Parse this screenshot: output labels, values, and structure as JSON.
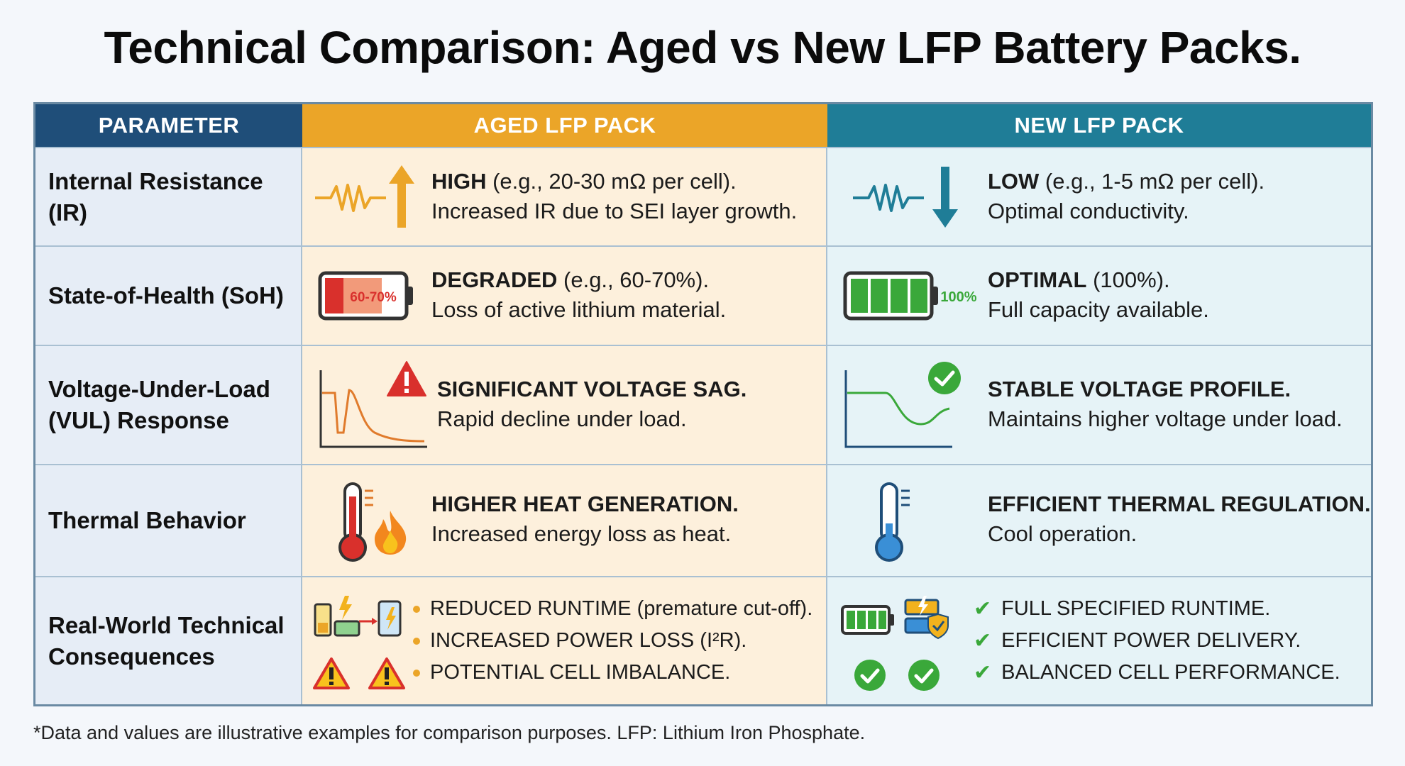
{
  "title": "Technical Comparison: Aged vs New LFP Battery Packs.",
  "headers": {
    "parameter": "PARAMETER",
    "aged": "AGED LFP PACK",
    "new": "NEW LFP PACK"
  },
  "rows": [
    {
      "parameter": "Internal Resistance (IR)",
      "aged": {
        "head": "HIGH",
        "head_rest": " (e.g., 20-30 mΩ per cell).",
        "line2": "Increased IR due to SEI layer growth."
      },
      "new": {
        "head": "LOW",
        "head_rest": " (e.g., 1-5 mΩ per cell).",
        "line2": "Optimal conductivity."
      }
    },
    {
      "parameter": "State-of-Health (SoH)",
      "aged": {
        "head": "DEGRADED",
        "head_rest": " (e.g., 60-70%).",
        "line2": "Loss of active lithium material.",
        "icon_label": "60-70%"
      },
      "new": {
        "head": "OPTIMAL",
        "head_rest": " (100%).",
        "line2": "Full capacity available.",
        "icon_label": "100%"
      }
    },
    {
      "parameter_line1": "Voltage-Under-Load",
      "parameter_line2": "(VUL) Response",
      "aged": {
        "head": "SIGNIFICANT VOLTAGE SAG.",
        "line2": "Rapid decline under load."
      },
      "new": {
        "head": "STABLE VOLTAGE PROFILE.",
        "line2": "Maintains higher voltage under load."
      }
    },
    {
      "parameter": "Thermal Behavior",
      "aged": {
        "head": "HIGHER HEAT GENERATION.",
        "line2": "Increased energy loss as heat."
      },
      "new": {
        "head": "EFFICIENT THERMAL REGULATION.",
        "line2": "Cool operation."
      }
    },
    {
      "parameter_line1": "Real-World Technical",
      "parameter_line2": "Consequences",
      "aged_bullets": [
        "REDUCED RUNTIME (premature cut-off).",
        "INCREASED POWER LOSS (I²R).",
        "POTENTIAL CELL IMBALANCE."
      ],
      "new_bullets": [
        "FULL SPECIFIED RUNTIME.",
        "EFFICIENT POWER DELIVERY.",
        "BALANCED CELL PERFORMANCE."
      ]
    }
  ],
  "footnote": "*Data and values are illustrative examples for comparison purposes. LFP: Lithium Iron Phosphate.",
  "colors": {
    "header_param": "#1f4e79",
    "header_aged": "#eba528",
    "header_new": "#1f7d97",
    "aged_bg": "#fdf0dc",
    "new_bg": "#e6f3f7",
    "param_bg": "#e6edf6",
    "good_green": "#3aa83a",
    "warning_red": "#d9302c"
  },
  "icons": {
    "ir_aged": [
      "resistor-wave-icon",
      "arrow-up-icon"
    ],
    "ir_new": [
      "resistor-wave-icon",
      "arrow-down-icon"
    ],
    "soh_aged": "battery-low-icon",
    "soh_new": "battery-full-icon",
    "vul_aged": [
      "voltage-sag-chart-icon",
      "warning-icon"
    ],
    "vul_new": [
      "stable-voltage-chart-icon",
      "check-circle-icon"
    ],
    "thermal_aged": [
      "thermometer-hot-icon",
      "flame-icon"
    ],
    "thermal_new": "thermometer-cool-icon",
    "consequences_aged": [
      "battery-charging-icon",
      "warning-icon"
    ],
    "consequences_new": [
      "battery-full-icon",
      "battery-shield-icon",
      "check-circle-icon"
    ]
  }
}
